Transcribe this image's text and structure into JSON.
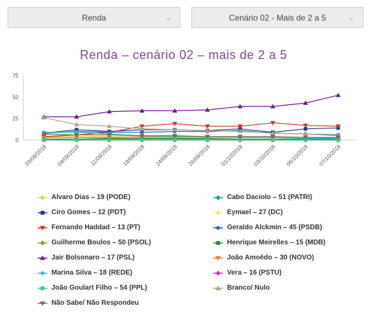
{
  "selects": {
    "first": {
      "value": "Renda",
      "caret_icon": "chevron-down-icon"
    },
    "second": {
      "value": "Cenário 02 - Mais de 2 a 5",
      "caret_icon": "chevron-down-icon"
    }
  },
  "chart_data": {
    "type": "line",
    "title": "Renda – cenário 02 – mais de 2 a 5",
    "xlabel": "",
    "ylabel": "",
    "ylim": [
      0,
      75
    ],
    "yticks": [
      0,
      25,
      50,
      75
    ],
    "grid": false,
    "legend_placement": "bottom",
    "categories": [
      "20/08/2018",
      "04/09/2018",
      "11/09/2018",
      "18/09/2018",
      "24/09/2018",
      "26/09/2018",
      "01/10/2018",
      "03/10/2018",
      "06/10/2018",
      "07/10/2018"
    ],
    "series": [
      {
        "name": "Alvaro Dias – 19 (PODE)",
        "color": "#d4e81c",
        "marker": "diamond",
        "values": [
          4,
          4,
          4,
          3,
          3,
          3,
          3,
          3,
          2,
          2
        ]
      },
      {
        "name": "Cabo Daciolo – 51 (PATRI)",
        "color": "#1fa5a8",
        "marker": "diamond",
        "values": [
          1,
          1,
          1,
          1,
          1,
          1,
          1,
          1,
          1,
          1
        ]
      },
      {
        "name": "Ciro Gomes – 12 (PDT)",
        "color": "#1e3a7a",
        "marker": "square",
        "values": [
          8,
          12,
          10,
          12,
          12,
          11,
          13,
          9,
          13,
          14
        ]
      },
      {
        "name": "Eymael – 27 (DC)",
        "color": "#f2ee6a",
        "marker": "diamond",
        "values": [
          0,
          0,
          0,
          0,
          0,
          0,
          0,
          0,
          0,
          0
        ]
      },
      {
        "name": "Fernando Haddad – 13 (PT)",
        "color": "#c9322c",
        "marker": "triangle-down",
        "values": [
          4,
          6,
          9,
          16,
          19,
          16,
          16,
          20,
          17,
          16
        ]
      },
      {
        "name": "Geraldo Alckmin – 45 (PSDB)",
        "color": "#1e6fb0",
        "marker": "circle",
        "values": [
          8,
          10,
          9,
          9,
          10,
          10,
          11,
          8,
          7,
          6
        ]
      },
      {
        "name": "Guilherme Boulos – 50 (PSOL)",
        "color": "#a39a2a",
        "marker": "diamond",
        "values": [
          1,
          1,
          1,
          1,
          1,
          1,
          1,
          1,
          1,
          1
        ]
      },
      {
        "name": "Henrique Meirelles – 15 (MDB)",
        "color": "#1f8a3c",
        "marker": "square",
        "values": [
          1,
          1,
          2,
          2,
          2,
          2,
          1,
          1,
          1,
          1
        ]
      },
      {
        "name": "Jair Bolsonaro – 17 (PSL)",
        "color": "#6a1a8a",
        "marker": "triangle-up",
        "values": [
          27,
          27,
          33,
          34,
          34,
          35,
          39,
          39,
          43,
          52
        ]
      },
      {
        "name": "João Amoêdo – 30 (NOVO)",
        "color": "#f07a3a",
        "marker": "triangle-down",
        "values": [
          3,
          3,
          3,
          4,
          4,
          4,
          4,
          3,
          3,
          2
        ]
      },
      {
        "name": "Marina Silva – 18 (REDE)",
        "color": "#28c4c4",
        "marker": "circle",
        "values": [
          9,
          9,
          7,
          5,
          4,
          4,
          3,
          3,
          2,
          2
        ]
      },
      {
        "name": "Vera – 16 (PSTU)",
        "color": "#e233b8",
        "marker": "diamond",
        "values": [
          0,
          0,
          0,
          0,
          0,
          0,
          0,
          0,
          0,
          0
        ]
      },
      {
        "name": "João Goulart Filho – 54 (PPL)",
        "color": "#3ecc7a",
        "marker": "square",
        "values": [
          0,
          0,
          0,
          0,
          0,
          0,
          0,
          0,
          0,
          0
        ]
      },
      {
        "name": "Branco/ Nulo",
        "color": "#b3a08a",
        "marker": "triangle-up",
        "values": [
          26,
          18,
          16,
          13,
          12,
          11,
          10,
          8,
          7,
          5
        ]
      },
      {
        "name": "Não Sabe/ Não Respondeu",
        "color": "#7a6a64",
        "marker": "triangle-down",
        "values": [
          7,
          6,
          6,
          5,
          5,
          4,
          4,
          4,
          3,
          3
        ]
      }
    ]
  }
}
